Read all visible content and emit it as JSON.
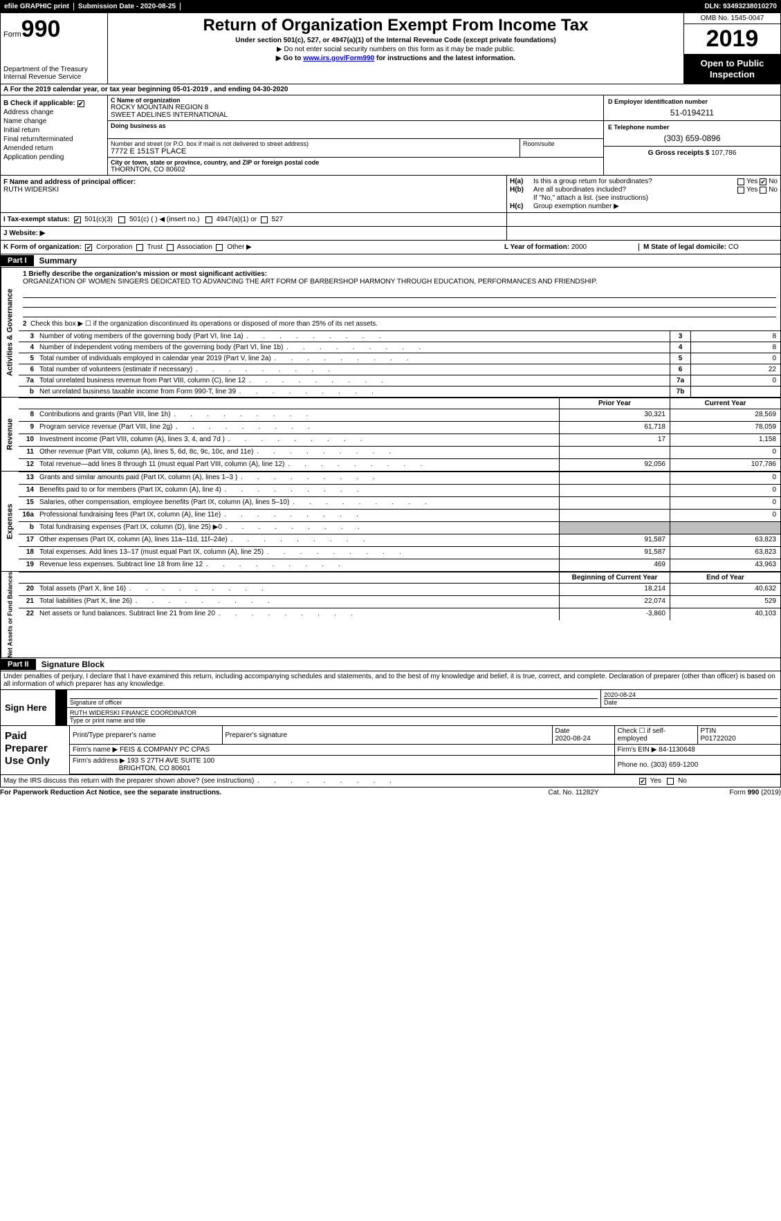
{
  "topbar": {
    "efile": "efile GRAPHIC print",
    "subdate_label": "Submission Date - ",
    "subdate": "2020-08-25",
    "dln_label": "DLN: ",
    "dln": "93493238010270"
  },
  "header": {
    "form_word": "Form",
    "form_num": "990",
    "dept": "Department of the Treasury\nInternal Revenue Service",
    "title": "Return of Organization Exempt From Income Tax",
    "sub1": "Under section 501(c), 527, or 4947(a)(1) of the Internal Revenue Code (except private foundations)",
    "sub2": "▶ Do not enter social security numbers on this form as it may be made public.",
    "sub3_pre": "▶ Go to ",
    "sub3_link": "www.irs.gov/Form990",
    "sub3_post": " for instructions and the latest information.",
    "omb": "OMB No. 1545-0047",
    "year": "2019",
    "openpub": "Open to Public Inspection"
  },
  "rowA": "A   For the 2019 calendar year, or tax year beginning 05-01-2019      , and ending 04-30-2020",
  "colB": {
    "hdr": "B Check if applicable:",
    "items": [
      "Address change",
      "Name change",
      "Initial return",
      "Final return/terminated",
      "Amended return",
      "Application pending"
    ]
  },
  "colC": {
    "name_lbl": "C Name of organization",
    "name1": "ROCKY MOUNTAIN REGION 8",
    "name2": "SWEET ADELINES INTERNATIONAL",
    "dba_lbl": "Doing business as",
    "addr_lbl": "Number and street (or P.O. box if mail is not delivered to street address)",
    "addr": "7772 E 151ST PLACE",
    "room_lbl": "Room/suite",
    "city_lbl": "City or town, state or province, country, and ZIP or foreign postal code",
    "city": "THORNTON, CO  80602"
  },
  "colD": {
    "ein_lbl": "D Employer identification number",
    "ein": "51-0194211",
    "phone_lbl": "E Telephone number",
    "phone": "(303) 659-0896",
    "gross_lbl": "G Gross receipts $ ",
    "gross": "107,786"
  },
  "colF": {
    "lbl": "F  Name and address of principal officer:",
    "name": "RUTH WIDERSKI"
  },
  "colH": {
    "ha_lbl": "H(a)",
    "ha_txt": "Is this a group return for subordinates?",
    "hb_lbl": "H(b)",
    "hb_txt": "Are all subordinates included?",
    "hb_note": "If \"No,\" attach a list. (see instructions)",
    "hc_lbl": "H(c)",
    "hc_txt": "Group exemption number ▶",
    "yes": "Yes",
    "no": "No"
  },
  "rowI": {
    "lbl": "I   Tax-exempt status:",
    "opts": [
      "501(c)(3)",
      "501(c) (  ) ◀ (insert no.)",
      "4947(a)(1) or",
      "527"
    ]
  },
  "rowJ": {
    "lbl": "J   Website: ▶"
  },
  "rowK": {
    "lbl": "K Form of organization:",
    "opts": [
      "Corporation",
      "Trust",
      "Association",
      "Other ▶"
    ]
  },
  "rowLM": {
    "l_lbl": "L Year of formation: ",
    "l_val": "2000",
    "m_lbl": "M State of legal domicile: ",
    "m_val": "CO"
  },
  "partI": {
    "tag": "Part I",
    "title": "Summary"
  },
  "ag": {
    "vlabel": "Activities & Governance",
    "q1_lbl": "1  Briefly describe the organization's mission or most significant activities:",
    "q1_txt": "ORGANIZATION OF WOMEN SINGERS DEDICATED TO ADVANCING THE ART FORM OF BARBERSHOP HARMONY THROUGH EDUCATION, PERFORMANCES AND FRIENDSHIP.",
    "q2": "Check this box ▶ ☐  if the organization discontinued its operations or disposed of more than 25% of its net assets.",
    "rows": [
      {
        "n": "3",
        "d": "Number of voting members of the governing body (Part VI, line 1a)",
        "b": "3",
        "v": "8"
      },
      {
        "n": "4",
        "d": "Number of independent voting members of the governing body (Part VI, line 1b)",
        "b": "4",
        "v": "8"
      },
      {
        "n": "5",
        "d": "Total number of individuals employed in calendar year 2019 (Part V, line 2a)",
        "b": "5",
        "v": "0"
      },
      {
        "n": "6",
        "d": "Total number of volunteers (estimate if necessary)",
        "b": "6",
        "v": "22"
      },
      {
        "n": "7a",
        "d": "Total unrelated business revenue from Part VIII, column (C), line 12",
        "b": "7a",
        "v": "0"
      },
      {
        "n": "b",
        "d": "Net unrelated business taxable income from Form 990-T, line 39",
        "b": "7b",
        "v": ""
      }
    ]
  },
  "rev": {
    "vlabel": "Revenue",
    "hdr_prior": "Prior Year",
    "hdr_curr": "Current Year",
    "rows": [
      {
        "n": "8",
        "d": "Contributions and grants (Part VIII, line 1h)",
        "p": "30,321",
        "c": "28,569"
      },
      {
        "n": "9",
        "d": "Program service revenue (Part VIII, line 2g)",
        "p": "61,718",
        "c": "78,059"
      },
      {
        "n": "10",
        "d": "Investment income (Part VIII, column (A), lines 3, 4, and 7d )",
        "p": "17",
        "c": "1,158"
      },
      {
        "n": "11",
        "d": "Other revenue (Part VIII, column (A), lines 5, 6d, 8c, 9c, 10c, and 11e)",
        "p": "",
        "c": "0"
      },
      {
        "n": "12",
        "d": "Total revenue—add lines 8 through 11 (must equal Part VIII, column (A), line 12)",
        "p": "92,056",
        "c": "107,786"
      }
    ]
  },
  "exp": {
    "vlabel": "Expenses",
    "rows": [
      {
        "n": "13",
        "d": "Grants and similar amounts paid (Part IX, column (A), lines 1–3 )",
        "p": "",
        "c": "0"
      },
      {
        "n": "14",
        "d": "Benefits paid to or for members (Part IX, column (A), line 4)",
        "p": "",
        "c": "0"
      },
      {
        "n": "15",
        "d": "Salaries, other compensation, employee benefits (Part IX, column (A), lines 5–10)",
        "p": "",
        "c": "0"
      },
      {
        "n": "16a",
        "d": "Professional fundraising fees (Part IX, column (A), line 11e)",
        "p": "",
        "c": "0"
      },
      {
        "n": "b",
        "d": "Total fundraising expenses (Part IX, column (D), line 25) ▶0",
        "p": "SHADE",
        "c": "SHADE"
      },
      {
        "n": "17",
        "d": "Other expenses (Part IX, column (A), lines 11a–11d, 11f–24e)",
        "p": "91,587",
        "c": "63,823"
      },
      {
        "n": "18",
        "d": "Total expenses. Add lines 13–17 (must equal Part IX, column (A), line 25)",
        "p": "91,587",
        "c": "63,823"
      },
      {
        "n": "19",
        "d": "Revenue less expenses. Subtract line 18 from line 12",
        "p": "469",
        "c": "43,963"
      }
    ]
  },
  "na": {
    "vlabel": "Net Assets or Fund Balances",
    "hdr_beg": "Beginning of Current Year",
    "hdr_end": "End of Year",
    "rows": [
      {
        "n": "20",
        "d": "Total assets (Part X, line 16)",
        "p": "18,214",
        "c": "40,632"
      },
      {
        "n": "21",
        "d": "Total liabilities (Part X, line 26)",
        "p": "22,074",
        "c": "529"
      },
      {
        "n": "22",
        "d": "Net assets or fund balances. Subtract line 21 from line 20",
        "p": "-3,860",
        "c": "40,103"
      }
    ]
  },
  "partII": {
    "tag": "Part II",
    "title": "Signature Block"
  },
  "penalty": "Under penalties of perjury, I declare that I have examined this return, including accompanying schedules and statements, and to the best of my knowledge and belief, it is true, correct, and complete. Declaration of preparer (other than officer) is based on all information of which preparer has any knowledge.",
  "sign": {
    "here": "Sign Here",
    "sig_lbl": "Signature of officer",
    "date": "2020-08-24",
    "date_lbl": "Date",
    "name": "RUTH WIDERSKI  FINANCE COORDINATOR",
    "name_lbl": "Type or print name and title"
  },
  "prep": {
    "lab": "Paid Preparer Use Only",
    "h1": "Print/Type preparer's name",
    "h2": "Preparer's signature",
    "h3_lbl": "Date",
    "h3": "2020-08-24",
    "h4": "Check ☐ if self-employed",
    "h5_lbl": "PTIN",
    "h5": "P01722020",
    "firm_name_lbl": "Firm's name    ▶ ",
    "firm_name": "FEIS & COMPANY PC CPAS",
    "firm_ein_lbl": "Firm's EIN ▶ ",
    "firm_ein": "84-1130648",
    "firm_addr_lbl": "Firm's address ▶ ",
    "firm_addr1": "193 S 27TH AVE SUITE 100",
    "firm_addr2": "BRIGHTON, CO  80601",
    "phone_lbl": "Phone no. ",
    "phone": "(303) 659-1200"
  },
  "discuss": {
    "txt": "May the IRS discuss this return with the preparer shown above? (see instructions)",
    "yes": "Yes",
    "no": "No"
  },
  "footer": {
    "l": "For Paperwork Reduction Act Notice, see the separate instructions.",
    "m": "Cat. No. 11282Y",
    "r": "Form 990 (2019)"
  }
}
